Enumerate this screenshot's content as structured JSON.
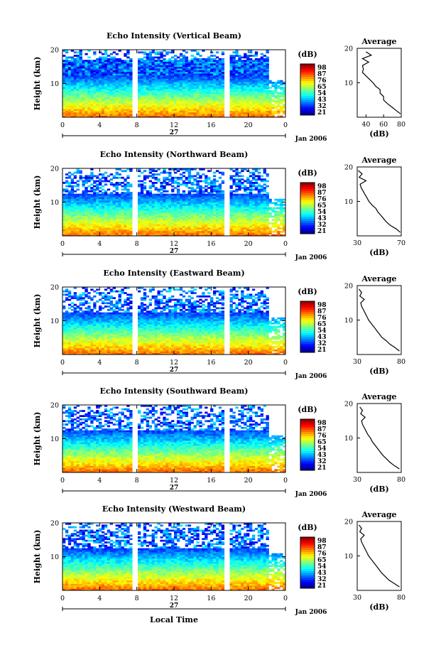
{
  "figure": {
    "x_axis_label": "Local Time",
    "day_label": "27",
    "month_label": "Jan 2006",
    "height_label": "Height (km)",
    "colorbar_unit": "(dB)",
    "average_title": "Average",
    "average_xunit": "(dB)"
  },
  "chart_data": [
    {
      "type": "heatmap",
      "title": "Echo Intensity (Vertical Beam)",
      "xlabel": "",
      "ylabel": "Height (km)",
      "xlim": [
        0,
        24
      ],
      "ylim": [
        0,
        20
      ],
      "x_ticks": [
        "0",
        "4",
        "8",
        "12",
        "16",
        "20",
        "0"
      ],
      "y_ticks": [
        10,
        20
      ],
      "data_gaps_hours": [
        7.8,
        17.7,
        22.4
      ],
      "colorbar": {
        "label": "(dB)",
        "ticks": [
          "98",
          "87",
          "76",
          "65",
          "54",
          "43",
          "32",
          "21"
        ]
      },
      "average_profile": {
        "title": "Average",
        "xlabel": "(dB)",
        "xlim": [
          30,
          80
        ],
        "x_ticks": [
          "40",
          "60",
          "80"
        ],
        "y_ticks": [
          10,
          20
        ],
        "height_km": [
          1,
          2,
          3,
          4,
          5,
          6,
          7,
          8,
          9,
          10,
          11,
          12,
          13,
          14,
          15,
          16,
          17,
          18,
          19
        ],
        "value_db": [
          79,
          74,
          69,
          64,
          60,
          60,
          56,
          56,
          51,
          48,
          44,
          40,
          36,
          37,
          36,
          43,
          36,
          46,
          40
        ]
      }
    },
    {
      "type": "heatmap",
      "title": "Echo Intensity (Northward Beam)",
      "xlabel": "",
      "ylabel": "Height (km)",
      "xlim": [
        0,
        24
      ],
      "ylim": [
        0,
        20
      ],
      "x_ticks": [
        "0",
        "4",
        "8",
        "12",
        "16",
        "20",
        "0"
      ],
      "y_ticks": [
        10,
        20
      ],
      "data_gaps_hours": [
        7.8,
        17.7,
        22.4
      ],
      "colorbar": {
        "label": "(dB)",
        "ticks": [
          "98",
          "87",
          "76",
          "65",
          "54",
          "43",
          "32",
          "21"
        ]
      },
      "average_profile": {
        "title": "Average",
        "xlabel": "(dB)",
        "xlim": [
          30,
          75
        ],
        "x_ticks": [
          "30",
          "70"
        ],
        "y_ticks": [
          10,
          20
        ],
        "height_km": [
          1,
          2,
          3,
          4,
          5,
          6,
          7,
          8,
          9,
          10,
          11,
          12,
          13,
          14,
          15,
          16,
          17,
          18,
          19
        ],
        "value_db": [
          74,
          70,
          64,
          60,
          57,
          54,
          51,
          49,
          45,
          42,
          40,
          38,
          36,
          34,
          33,
          39,
          32,
          35,
          31
        ]
      }
    },
    {
      "type": "heatmap",
      "title": "Echo Intensity (Eastward Beam)",
      "xlabel": "",
      "ylabel": "Height (km)",
      "xlim": [
        0,
        24
      ],
      "ylim": [
        0,
        20
      ],
      "x_ticks": [
        "0",
        "4",
        "8",
        "12",
        "16",
        "20",
        "0"
      ],
      "y_ticks": [
        10,
        20
      ],
      "data_gaps_hours": [
        7.8,
        17.7,
        22.4
      ],
      "colorbar": {
        "label": "(dB)",
        "ticks": [
          "98",
          "87",
          "76",
          "65",
          "54",
          "43",
          "32",
          "21"
        ]
      },
      "average_profile": {
        "title": "Average",
        "xlabel": "(dB)",
        "xlim": [
          30,
          80
        ],
        "x_ticks": [
          "30",
          "80"
        ],
        "y_ticks": [
          10,
          20
        ],
        "height_km": [
          1,
          2,
          3,
          4,
          5,
          6,
          7,
          8,
          9,
          10,
          11,
          12,
          13,
          14,
          15,
          16,
          17,
          18,
          19
        ],
        "value_db": [
          78,
          73,
          67,
          63,
          58,
          55,
          52,
          49,
          46,
          43,
          41,
          39,
          37,
          35,
          34,
          38,
          33,
          35,
          32
        ]
      }
    },
    {
      "type": "heatmap",
      "title": "Echo Intensity (Southward Beam)",
      "xlabel": "",
      "ylabel": "Height (km)",
      "xlim": [
        0,
        24
      ],
      "ylim": [
        0,
        20
      ],
      "x_ticks": [
        "0",
        "4",
        "8",
        "12",
        "16",
        "20",
        "0"
      ],
      "y_ticks": [
        10,
        20
      ],
      "data_gaps_hours": [
        7.8,
        17.7,
        22.4
      ],
      "colorbar": {
        "label": "(dB)",
        "ticks": [
          "98",
          "87",
          "76",
          "65",
          "54",
          "43",
          "32",
          "21"
        ]
      },
      "average_profile": {
        "title": "Average",
        "xlabel": "(dB)",
        "xlim": [
          30,
          80
        ],
        "x_ticks": [
          "30",
          "80"
        ],
        "y_ticks": [
          10,
          20
        ],
        "height_km": [
          1,
          2,
          3,
          4,
          5,
          6,
          7,
          8,
          9,
          10,
          11,
          12,
          13,
          14,
          15,
          16,
          17,
          18,
          19
        ],
        "value_db": [
          78,
          72,
          67,
          63,
          59,
          56,
          53,
          50,
          47,
          45,
          42,
          40,
          38,
          36,
          35,
          39,
          34,
          36,
          33
        ]
      }
    },
    {
      "type": "heatmap",
      "title": "Echo Intensity (Westward Beam)",
      "xlabel": "Local Time",
      "ylabel": "Height (km)",
      "xlim": [
        0,
        24
      ],
      "ylim": [
        0,
        20
      ],
      "x_ticks": [
        "0",
        "4",
        "8",
        "12",
        "16",
        "20",
        "0"
      ],
      "y_ticks": [
        10,
        20
      ],
      "data_gaps_hours": [
        7.8,
        17.7,
        22.4
      ],
      "colorbar": {
        "label": "(dB)",
        "ticks": [
          "98",
          "87",
          "76",
          "65",
          "54",
          "43",
          "32",
          "21"
        ]
      },
      "average_profile": {
        "title": "Average",
        "xlabel": "(dB)",
        "xlim": [
          30,
          80
        ],
        "x_ticks": [
          "30",
          "80"
        ],
        "y_ticks": [
          10,
          20
        ],
        "height_km": [
          1,
          2,
          3,
          4,
          5,
          6,
          7,
          8,
          9,
          10,
          11,
          12,
          13,
          14,
          15,
          16,
          17,
          18,
          19
        ],
        "value_db": [
          78,
          72,
          66,
          62,
          58,
          55,
          52,
          49,
          46,
          43,
          41,
          39,
          37,
          35,
          34,
          38,
          33,
          35,
          32
        ]
      }
    }
  ]
}
